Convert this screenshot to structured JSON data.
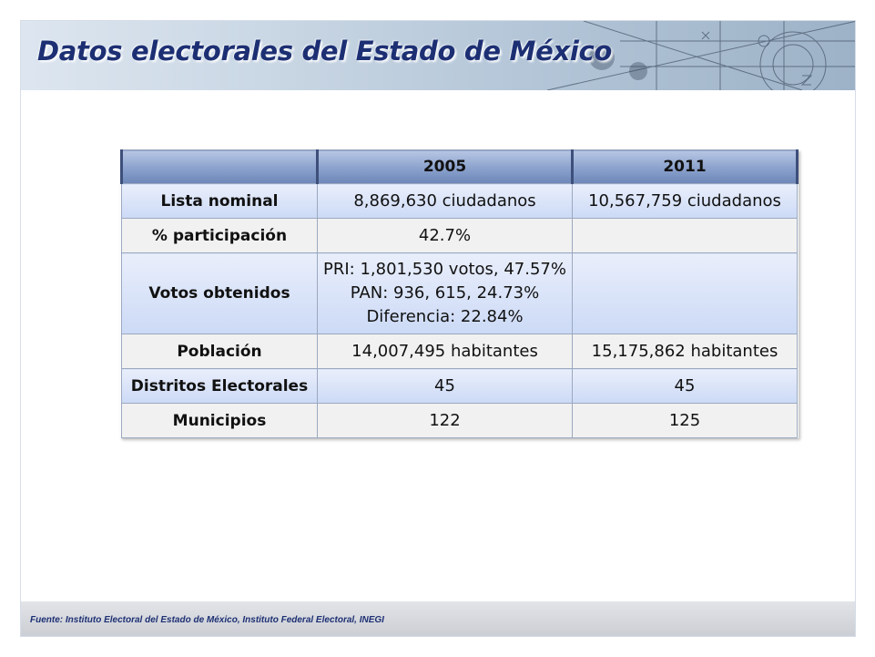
{
  "slide": {
    "title": "Datos electorales del Estado de México",
    "footer": "Fuente: Instituto Electoral del Estado de México, Instituto Federal Electoral, INEGI"
  },
  "table": {
    "headers": [
      "",
      "2005",
      "2011"
    ],
    "rows": [
      {
        "label": "Lista nominal",
        "v2005": "8,869,630 ciudadanos",
        "v2011": "10,567,759 ciudadanos"
      },
      {
        "label": "% participación",
        "v2005": "42.7%",
        "v2011": ""
      },
      {
        "label": "Votos obtenidos",
        "v2005_lines": [
          "PRI: 1,801,530 votos, 47.57%",
          "PAN: 936, 615, 24.73%",
          "Diferencia: 22.84%"
        ],
        "v2011": ""
      },
      {
        "label": "Población",
        "v2005": "14,007,495 habitantes",
        "v2011": "15,175,862 habitantes"
      },
      {
        "label": "Distritos Electorales",
        "v2005": "45",
        "v2011": "45"
      },
      {
        "label": "Municipios",
        "v2005": "122",
        "v2011": "125"
      }
    ]
  },
  "colors": {
    "title": "#1d2f73",
    "header_fill": "#8aa1cc",
    "row_blue": "#ccdaf6",
    "row_grey": "#f1f1f1"
  }
}
